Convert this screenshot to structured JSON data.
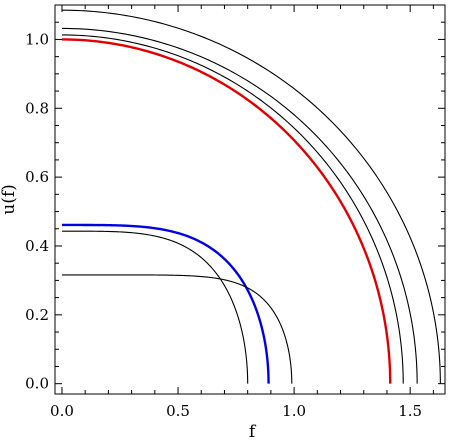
{
  "chart_data": {
    "type": "line",
    "title": "",
    "xlabel": "f",
    "ylabel": "u(f)",
    "xlim": [
      -0.03,
      1.65
    ],
    "ylim": [
      -0.03,
      1.1
    ],
    "xticks": [
      0.0,
      0.5,
      1.0,
      1.5
    ],
    "xtick_labels": [
      "0.0",
      "0.5",
      "1.0",
      "1.5"
    ],
    "yticks": [
      0.0,
      0.2,
      0.4,
      0.6,
      0.8,
      1.0
    ],
    "ytick_labels": [
      "0.0",
      "0.2",
      "0.4",
      "0.6",
      "0.8",
      "1.0"
    ],
    "grid": false,
    "legend": "none",
    "series": [
      {
        "color": "#000000",
        "width": 1.1,
        "u0": 1.085,
        "fmax": 1.63,
        "p": 2.0
      },
      {
        "color": "#000000",
        "width": 1.1,
        "u0": 1.032,
        "fmax": 1.53,
        "p": 2.0
      },
      {
        "color": "#000000",
        "width": 1.1,
        "u0": 1.013,
        "fmax": 1.47,
        "p": 2.0
      },
      {
        "color": "#e00000",
        "width": 2.4,
        "u0": 1.0,
        "fmax": 1.414,
        "p": 2.0
      },
      {
        "color": "#0000e0",
        "width": 2.4,
        "u0": 0.461,
        "fmax": 0.89,
        "p": 4.0
      },
      {
        "color": "#000000",
        "width": 1.1,
        "u0": 0.443,
        "fmax": 0.8,
        "p": 4.0
      },
      {
        "color": "#000000",
        "width": 1.1,
        "u0": 0.316,
        "fmax": 0.99,
        "p": 7.0
      }
    ]
  }
}
